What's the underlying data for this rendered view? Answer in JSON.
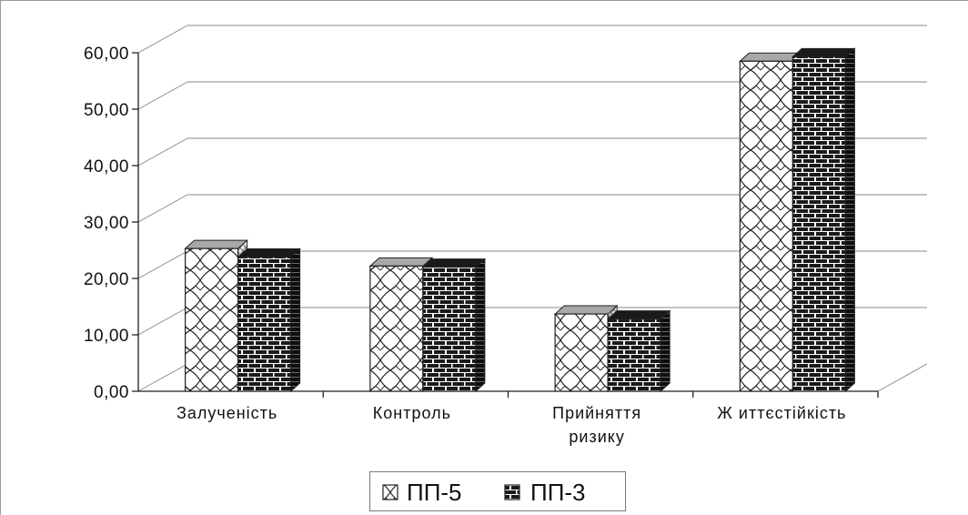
{
  "chart_data": {
    "type": "bar",
    "categories": [
      [
        "Залученість"
      ],
      [
        "Контроль"
      ],
      [
        "Прийняття",
        "ризику"
      ],
      [
        "Ж иттєстійкість"
      ]
    ],
    "series": [
      {
        "name": "ПП-5",
        "values": [
          25.3,
          22.2,
          13.7,
          58.5
        ],
        "pattern": "crosshatch",
        "color": "#ffffff"
      },
      {
        "name": "ПП-3",
        "values": [
          23.8,
          22.0,
          12.8,
          59.3
        ],
        "pattern": "brick",
        "color": "#222222"
      }
    ],
    "y_ticks": [
      "0,00",
      "10,00",
      "20,00",
      "30,00",
      "40,00",
      "50,00",
      "60,00"
    ],
    "ylim": [
      0,
      60
    ],
    "grid": true,
    "legend_position": "bottom-center"
  }
}
